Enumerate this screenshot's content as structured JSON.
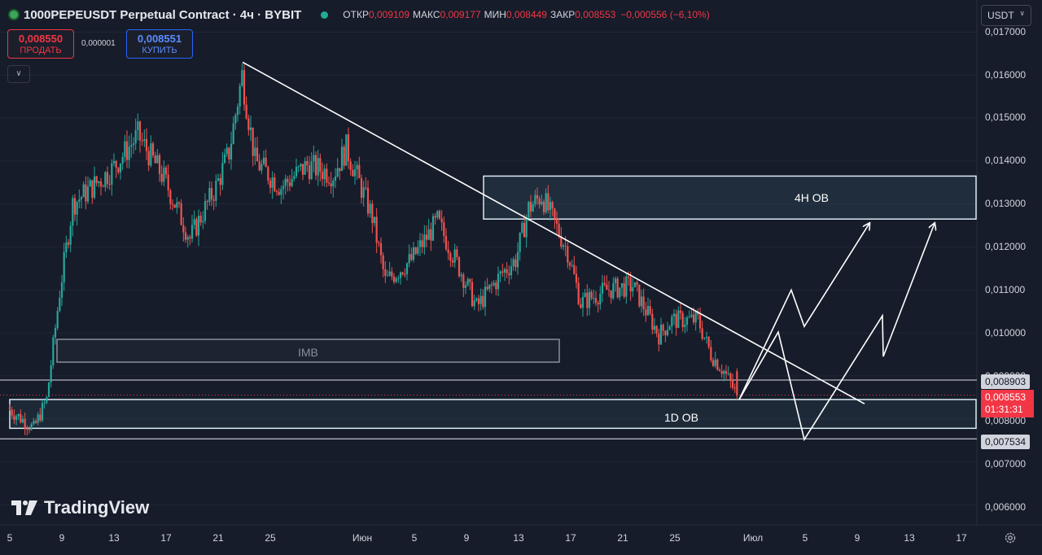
{
  "header": {
    "title": "1000PEPEUSDT Perpetual Contract · 4ч · BYBIT",
    "ohlc": [
      {
        "label": "ОТКР",
        "value": "0,009109"
      },
      {
        "label": "МАКС",
        "value": "0,009177"
      },
      {
        "label": "МИН",
        "value": "0,008449"
      },
      {
        "label": "ЗАКР",
        "value": "0,008553"
      }
    ],
    "change": "−0,000556 (−6,10%)"
  },
  "trade": {
    "sell_price": "0,008550",
    "sell_label": "ПРОДАТЬ",
    "buy_price": "0,008551",
    "buy_label": "КУПИТЬ",
    "spread": "0,000001"
  },
  "currency": "USDT",
  "brand": "TradingView",
  "price_axis": [
    "0,017000",
    "0,016000",
    "0,015000",
    "0,014000",
    "0,013000",
    "0,012000",
    "0,011000",
    "0,010000",
    "0,009000",
    "0,008000",
    "0,007000",
    "0,006000"
  ],
  "price_tags": {
    "level_high": "0,008903",
    "current_price": "0,008553",
    "countdown": "01:31:31",
    "level_low": "0,007534"
  },
  "time_axis": [
    "5",
    "9",
    "13",
    "17",
    "21",
    "25",
    "Июн",
    "5",
    "9",
    "13",
    "17",
    "21",
    "25",
    "Июл",
    "5",
    "9",
    "13",
    "17"
  ],
  "colors": {
    "up": "#26a69a",
    "down": "#ef5350",
    "background": "#161c2a",
    "zone": "#1e2c3c",
    "zone_border": "#d8eaf2"
  },
  "chart_data": {
    "type": "candlestick",
    "symbol": "1000PEPEUSDT",
    "timeframe": "4ч",
    "y_range": [
      0.0058,
      0.0172
    ],
    "date_range": [
      "2024-05-05",
      "2024-07-18"
    ],
    "last": {
      "open": 0.009109,
      "high": 0.009177,
      "low": 0.008449,
      "close": 0.008553
    },
    "series": [
      {
        "date": "2024-05-05",
        "close": 0.00825
      },
      {
        "date": "2024-05-07",
        "close": 0.00778
      },
      {
        "date": "2024-05-08",
        "close": 0.00845
      },
      {
        "date": "2024-05-09",
        "close": 0.01095
      },
      {
        "date": "2024-05-10",
        "close": 0.013
      },
      {
        "date": "2024-05-13",
        "close": 0.0138
      },
      {
        "date": "2024-05-15",
        "close": 0.0146
      },
      {
        "date": "2024-05-17",
        "close": 0.0136
      },
      {
        "date": "2024-05-19",
        "close": 0.0122
      },
      {
        "date": "2024-05-21",
        "close": 0.0134
      },
      {
        "date": "2024-05-22",
        "close": 0.0142
      },
      {
        "date": "2024-05-23",
        "close": 0.016
      },
      {
        "date": "2024-05-24",
        "close": 0.014
      },
      {
        "date": "2024-05-26",
        "close": 0.0134
      },
      {
        "date": "2024-05-28",
        "close": 0.0139
      },
      {
        "date": "2024-05-30",
        "close": 0.0137
      },
      {
        "date": "2024-05-31",
        "close": 0.0143
      },
      {
        "date": "2024-06-02",
        "close": 0.0127
      },
      {
        "date": "2024-06-03",
        "close": 0.0112
      },
      {
        "date": "2024-06-05",
        "close": 0.0117
      },
      {
        "date": "2024-06-07",
        "close": 0.0126
      },
      {
        "date": "2024-06-09",
        "close": 0.0113
      },
      {
        "date": "2024-06-10",
        "close": 0.0106
      },
      {
        "date": "2024-06-12",
        "close": 0.0114
      },
      {
        "date": "2024-06-13",
        "close": 0.0117
      },
      {
        "date": "2024-06-14",
        "close": 0.0129
      },
      {
        "date": "2024-06-15",
        "close": 0.0132
      },
      {
        "date": "2024-06-17",
        "close": 0.0119
      },
      {
        "date": "2024-06-18",
        "close": 0.0107
      },
      {
        "date": "2024-06-20",
        "close": 0.011
      },
      {
        "date": "2024-06-22",
        "close": 0.0111
      },
      {
        "date": "2024-06-24",
        "close": 0.00995
      },
      {
        "date": "2024-06-25",
        "close": 0.0103
      },
      {
        "date": "2024-06-27",
        "close": 0.0103
      },
      {
        "date": "2024-06-28",
        "close": 0.0095
      },
      {
        "date": "2024-06-29",
        "close": 0.00911
      },
      {
        "date": "2024-06-30",
        "close": 0.00855
      }
    ],
    "zones": [
      {
        "label": "4H OB",
        "top": 0.01365,
        "bottom": 0.01265
      },
      {
        "label": "IMB",
        "top": 0.00985,
        "bottom": 0.00932
      },
      {
        "label": "1D OB",
        "top": 0.00845,
        "bottom": 0.00778
      }
    ],
    "levels": [
      0.008903,
      0.007534
    ],
    "trendline": [
      {
        "date": "2024-05-21",
        "price": 0.0163
      },
      {
        "date": "2024-07-09",
        "price": 0.00835
      }
    ],
    "projections": [
      [
        {
          "date": "2024-06-30",
          "price": 0.00845
        },
        {
          "date": "2024-07-04",
          "price": 0.011
        },
        {
          "date": "2024-07-05",
          "price": 0.01015
        },
        {
          "date": "2024-07-10",
          "price": 0.01255
        }
      ],
      [
        {
          "date": "2024-06-30",
          "price": 0.00845
        },
        {
          "date": "2024-07-03",
          "price": 0.01002
        },
        {
          "date": "2024-07-05",
          "price": 0.00752
        },
        {
          "date": "2024-07-11",
          "price": 0.0104
        },
        {
          "date": "2024-07-11",
          "price": 0.00945
        },
        {
          "date": "2024-07-15",
          "price": 0.01255
        }
      ]
    ]
  }
}
